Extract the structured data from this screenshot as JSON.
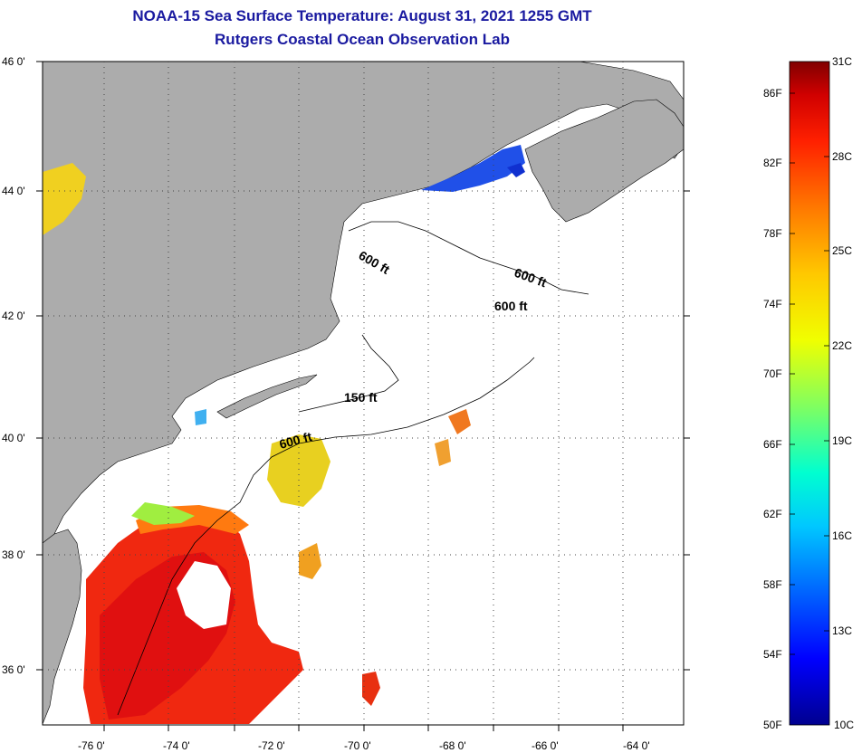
{
  "header": {
    "title_line1": "NOAA-15 Sea Surface Temperature:  August 31, 2021 1255 GMT",
    "title_line2": "Rutgers Coastal Ocean Observation Lab"
  },
  "axes": {
    "lat_labels": [
      "46 0'",
      "44 0'",
      "42 0'",
      "40 0'",
      "38 0'",
      "36 0'"
    ],
    "lon_labels": [
      "-76 0'",
      "-74 0'",
      "-72 0'",
      "-70 0'",
      "-68 0'",
      "-66 0'",
      "-64 0'"
    ]
  },
  "contours": {
    "label_600_a": "600 ft",
    "label_600_b": "600 ft",
    "label_600_c": "600 ft",
    "label_150": "150 ft",
    "label_600_d": "600 ft"
  },
  "colorbar": {
    "f_labels": [
      "86F",
      "82F",
      "78F",
      "74F",
      "70F",
      "66F",
      "62F",
      "58F",
      "54F",
      "50F"
    ],
    "c_labels": [
      "31C",
      "28C",
      "25C",
      "22C",
      "19C",
      "16C",
      "13C",
      "10C"
    ]
  },
  "colors": {
    "land": "#acacac",
    "water": "#ffffff",
    "title": "#1a1aa0"
  }
}
